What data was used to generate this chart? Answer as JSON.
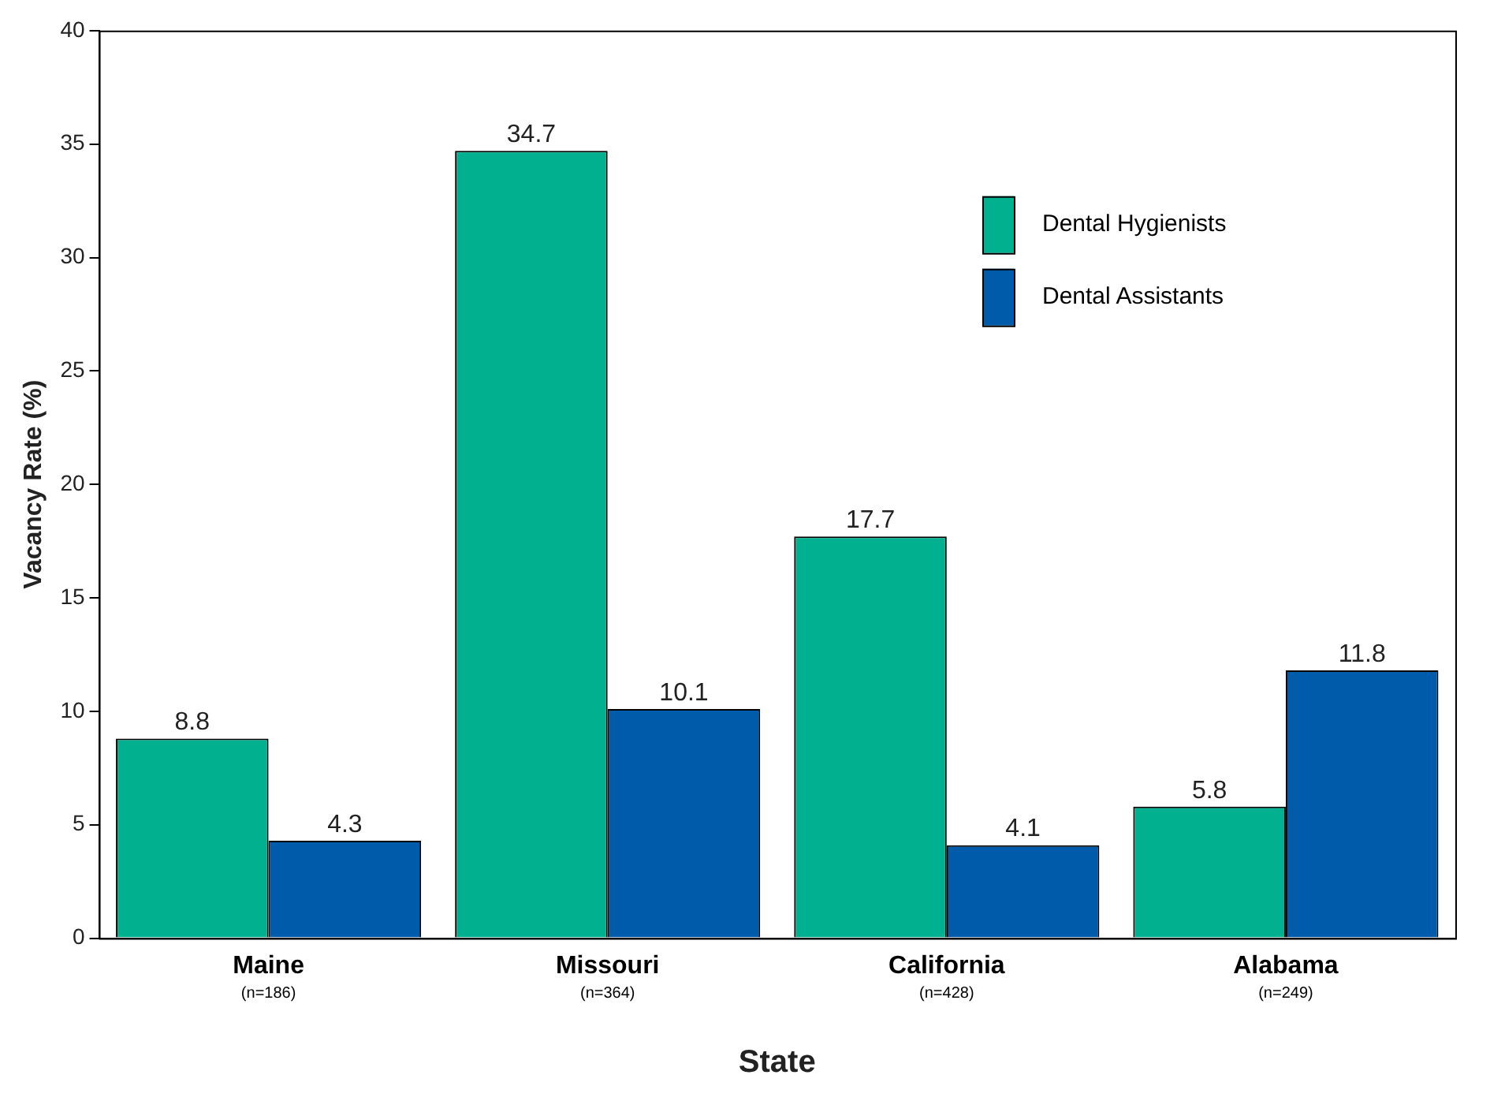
{
  "chart_data": {
    "type": "bar",
    "xlabel": "State",
    "ylabel": "Vacancy Rate (%)",
    "categories": [
      "Maine\n(n=186)",
      "Missouri\n(n=364)",
      "California\n(n=428)",
      "Alabama\n(n=249)"
    ],
    "series": [
      {
        "name": "Dental Hygienists",
        "color": "#00b08f",
        "values": [
          8.8,
          34.7,
          17.7,
          5.8
        ]
      },
      {
        "name": "Dental Assistants",
        "color": "#005bab",
        "values": [
          4.3,
          10.1,
          4.1,
          11.8
        ]
      }
    ],
    "ylim": [
      0,
      40
    ],
    "yticks": [
      0,
      5,
      10,
      15,
      20,
      25,
      30,
      35,
      40
    ],
    "data_labels": true,
    "legend": "top right",
    "grid": false
  }
}
